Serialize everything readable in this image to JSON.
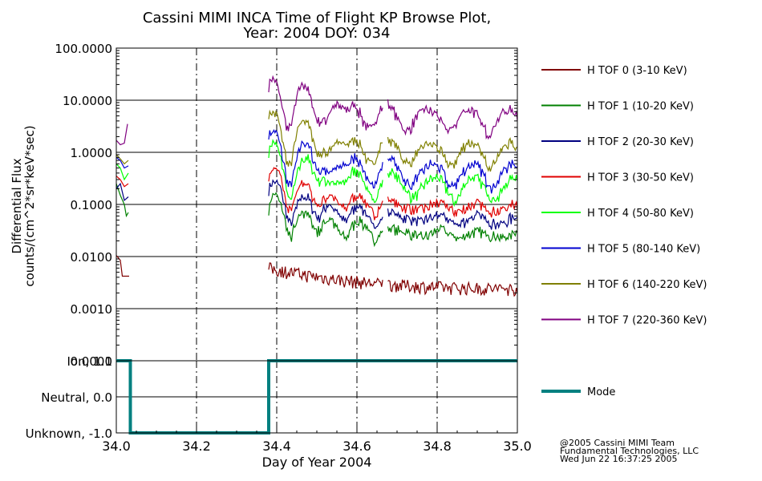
{
  "chart_data": [
    {
      "type": "line",
      "title": "Cassini MIMI INCA Time of Flight KP Browse Plot,",
      "subtitle": "Year: 2004 DOY: 034",
      "ylabel": "Differential Flux",
      "ylabel2": "counts/(cm^2*sr*keV*sec)",
      "xlabel": "",
      "yscale": "log",
      "ylim": [
        0.0001,
        100
      ],
      "xlim": [
        34.0,
        35.0
      ],
      "ytick_labels": [
        "100.0000",
        "10.0000",
        "1.0000",
        "0.1000",
        "0.0100",
        "0.0010",
        "0.0001"
      ],
      "grid": true,
      "legend_position": "right",
      "series": [
        {
          "name": "H TOF 0 (3-10 KeV)",
          "color": "#800000",
          "base": 0.0022,
          "seg1": [
            [
              34.0,
              0.0105
            ],
            [
              34.01,
              0.0085
            ],
            [
              34.015,
              0.0042
            ],
            [
              34.032,
              0.0042
            ]
          ],
          "seg2_end": 35.0
        },
        {
          "name": "H TOF 1 (10-20 KeV)",
          "color": "#008000",
          "base": 0.026,
          "seg1": [
            [
              34.0,
              0.25
            ],
            [
              34.01,
              0.15
            ],
            [
              34.02,
              0.1
            ],
            [
              34.025,
              0.06
            ],
            [
              34.03,
              0.07
            ]
          ],
          "seg2_end": 35.0
        },
        {
          "name": "H TOF 2 (20-30 KeV)",
          "color": "#000080",
          "base": 0.05,
          "seg1": [
            [
              34.0,
              0.2
            ],
            [
              34.01,
              0.25
            ],
            [
              34.02,
              0.12
            ],
            [
              34.03,
              0.14
            ]
          ],
          "seg2_end": 35.0
        },
        {
          "name": "H TOF 3 (30-50 KeV)",
          "color": "#e00000",
          "base": 0.085,
          "seg1": [
            [
              34.0,
              0.35
            ],
            [
              34.01,
              0.3
            ],
            [
              34.02,
              0.22
            ],
            [
              34.03,
              0.25
            ]
          ],
          "seg2_end": 35.0
        },
        {
          "name": "H TOF 4 (50-80 KeV)",
          "color": "#00ff00",
          "base": 0.22,
          "seg1": [
            [
              34.0,
              0.6
            ],
            [
              34.01,
              0.5
            ],
            [
              34.02,
              0.3
            ],
            [
              34.03,
              0.4
            ]
          ],
          "seg2_end": 35.0
        },
        {
          "name": "H TOF 5 (80-140 KeV)",
          "color": "#0000d0",
          "base": 0.4,
          "seg1": [
            [
              34.0,
              0.8
            ],
            [
              34.01,
              0.7
            ],
            [
              34.02,
              0.5
            ],
            [
              34.03,
              0.55
            ]
          ],
          "seg2_end": 35.0
        },
        {
          "name": "H TOF 6 (140-220 KeV)",
          "color": "#808000",
          "base": 1.0,
          "seg1": [
            [
              34.0,
              0.9
            ],
            [
              34.01,
              0.75
            ],
            [
              34.02,
              0.6
            ],
            [
              34.03,
              0.7
            ]
          ],
          "seg2_end": 35.0
        },
        {
          "name": "H TOF 7 (220-360 KeV)",
          "color": "#800080",
          "base": 4.5,
          "seg1": [
            [
              34.0,
              1.7
            ],
            [
              34.01,
              1.4
            ],
            [
              34.02,
              1.5
            ],
            [
              34.028,
              3.5
            ]
          ],
          "seg2_end": 35.0
        }
      ],
      "gap": {
        "start": 34.03,
        "end": 34.38
      },
      "data_gap2": [
        34.665,
        34.675
      ],
      "vlines": [
        34.2,
        34.4,
        34.6,
        34.8
      ]
    },
    {
      "type": "line",
      "xlabel": "Day of Year 2004",
      "xlim": [
        34.0,
        35.0
      ],
      "ylim": [
        -1.0,
        1.0
      ],
      "x_tick_labels": [
        "34.0",
        "34.2",
        "34.4",
        "34.6",
        "34.8",
        "35.0"
      ],
      "y_tick_labels": [
        "Ion, 1.0",
        "Neutral, 0.0",
        "Unknown, -1.0"
      ],
      "series": [
        {
          "name": "Mode",
          "color": "#008080",
          "x": [
            34.0,
            34.035,
            34.035,
            34.38,
            34.38,
            35.0
          ],
          "y": [
            1.0,
            1.0,
            -1.0,
            -1.0,
            1.0,
            1.0
          ]
        }
      ]
    }
  ],
  "credits": [
    "@2005 Cassini MIMI Team",
    "Fundamental Technologies, LLC",
    "Wed Jun 22 16:37:25 2005"
  ]
}
